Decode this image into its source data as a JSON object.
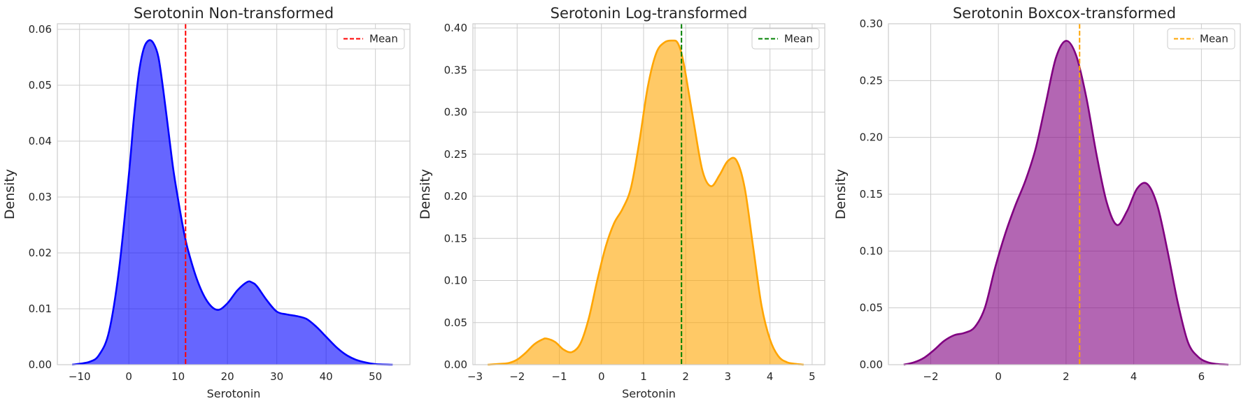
{
  "chart_data": [
    {
      "type": "area",
      "title": "Serotonin Non-transformed",
      "xlabel": "Serotonin",
      "ylabel": "Density",
      "xlim": [
        -14.5,
        57
      ],
      "ylim": [
        0,
        0.061
      ],
      "xticks": [
        -10,
        0,
        10,
        20,
        30,
        40,
        50
      ],
      "yticks": [
        0,
        0.01,
        0.02,
        0.03,
        0.04,
        0.05,
        0.06
      ],
      "ytick_labels": [
        "0.00",
        "0.01",
        "0.02",
        "0.03",
        "0.04",
        "0.05",
        "0.06"
      ],
      "xtick_labels": [
        "−10",
        "0",
        "10",
        "20",
        "30",
        "40",
        "50"
      ],
      "grid": true,
      "legend": {
        "position": "top-right",
        "entries": [
          "Mean"
        ]
      },
      "line_color": "#0000ff",
      "fill_color": "#0000ff",
      "mean_color": "#ff0000",
      "mean": 11.5,
      "x": [
        -11.5,
        -8,
        -6,
        -4,
        -2,
        0,
        1,
        2,
        3,
        4,
        5,
        6,
        7,
        8,
        9,
        10,
        11,
        12,
        14,
        16,
        18,
        20,
        22,
        24,
        25,
        26,
        28,
        30,
        32,
        34,
        36,
        38,
        40,
        42,
        44,
        46,
        48,
        50,
        53.5
      ],
      "y": [
        0,
        0.0005,
        0.0018,
        0.006,
        0.017,
        0.034,
        0.044,
        0.052,
        0.0565,
        0.058,
        0.0575,
        0.055,
        0.049,
        0.042,
        0.035,
        0.0295,
        0.0245,
        0.0205,
        0.0148,
        0.0112,
        0.0098,
        0.011,
        0.0133,
        0.0148,
        0.0147,
        0.014,
        0.0115,
        0.0095,
        0.009,
        0.0087,
        0.0082,
        0.0068,
        0.005,
        0.0032,
        0.0018,
        0.0009,
        0.0004,
        0.0001,
        0
      ]
    },
    {
      "type": "area",
      "title": "Serotonin Log-transformed",
      "xlabel": "Serotonin",
      "ylabel": "Density",
      "xlim": [
        -3.05,
        5.3
      ],
      "ylim": [
        0,
        0.405
      ],
      "xticks": [
        -3,
        -2,
        -1,
        0,
        1,
        2,
        3,
        4,
        5
      ],
      "yticks": [
        0,
        0.05,
        0.1,
        0.15,
        0.2,
        0.25,
        0.3,
        0.35,
        0.4
      ],
      "ytick_labels": [
        "0.00",
        "0.05",
        "0.10",
        "0.15",
        "0.20",
        "0.25",
        "0.30",
        "0.35",
        "0.40"
      ],
      "xtick_labels": [
        "−3",
        "−2",
        "−1",
        "0",
        "1",
        "2",
        "3",
        "4",
        "5"
      ],
      "grid": true,
      "legend": {
        "position": "top-right",
        "entries": [
          "Mean"
        ]
      },
      "line_color": "#ffa500",
      "fill_color": "#ffa500",
      "mean_color": "#008000",
      "mean": 1.9,
      "x": [
        -2.7,
        -2.4,
        -2.2,
        -2.0,
        -1.8,
        -1.6,
        -1.4,
        -1.3,
        -1.1,
        -0.9,
        -0.7,
        -0.5,
        -0.3,
        -0.1,
        0.1,
        0.3,
        0.5,
        0.7,
        0.9,
        1.1,
        1.3,
        1.5,
        1.7,
        1.8,
        1.9,
        2.0,
        2.2,
        2.4,
        2.6,
        2.8,
        3.0,
        3.2,
        3.4,
        3.6,
        3.8,
        4.0,
        4.2,
        4.4,
        4.6,
        4.8
      ],
      "y": [
        0,
        0.001,
        0.002,
        0.006,
        0.014,
        0.024,
        0.03,
        0.031,
        0.027,
        0.018,
        0.015,
        0.025,
        0.055,
        0.1,
        0.14,
        0.168,
        0.185,
        0.21,
        0.265,
        0.33,
        0.37,
        0.383,
        0.385,
        0.383,
        0.37,
        0.345,
        0.285,
        0.23,
        0.212,
        0.225,
        0.242,
        0.243,
        0.21,
        0.14,
        0.07,
        0.03,
        0.01,
        0.003,
        0.001,
        0
      ]
    },
    {
      "type": "area",
      "title": "Serotonin Boxcox-transformed",
      "xlabel": "",
      "ylabel": "Density",
      "xlim": [
        -3.25,
        7.15
      ],
      "ylim": [
        0,
        0.3
      ],
      "xticks": [
        -2,
        0,
        2,
        4,
        6
      ],
      "yticks": [
        0,
        0.05,
        0.1,
        0.15,
        0.2,
        0.25,
        0.3
      ],
      "ytick_labels": [
        "0.00",
        "0.05",
        "0.10",
        "0.15",
        "0.20",
        "0.25",
        "0.30"
      ],
      "xtick_labels": [
        "−2",
        "0",
        "2",
        "4",
        "6"
      ],
      "grid": true,
      "legend": {
        "position": "top-right",
        "entries": [
          "Mean"
        ]
      },
      "line_color": "#800080",
      "fill_color": "#800080",
      "mean_color": "#ffa500",
      "mean": 2.4,
      "x": [
        -2.8,
        -2.5,
        -2.2,
        -1.9,
        -1.6,
        -1.3,
        -1.0,
        -0.7,
        -0.4,
        -0.1,
        0.2,
        0.5,
        0.8,
        1.1,
        1.4,
        1.7,
        2.0,
        2.3,
        2.6,
        2.9,
        3.2,
        3.5,
        3.8,
        4.1,
        4.4,
        4.7,
        5.0,
        5.3,
        5.6,
        5.9,
        6.2,
        6.5,
        6.8
      ],
      "y": [
        0,
        0.002,
        0.006,
        0.013,
        0.021,
        0.026,
        0.028,
        0.033,
        0.05,
        0.085,
        0.115,
        0.14,
        0.162,
        0.19,
        0.23,
        0.27,
        0.285,
        0.272,
        0.235,
        0.185,
        0.143,
        0.123,
        0.135,
        0.155,
        0.159,
        0.14,
        0.1,
        0.055,
        0.02,
        0.007,
        0.002,
        0.0005,
        0
      ]
    }
  ]
}
